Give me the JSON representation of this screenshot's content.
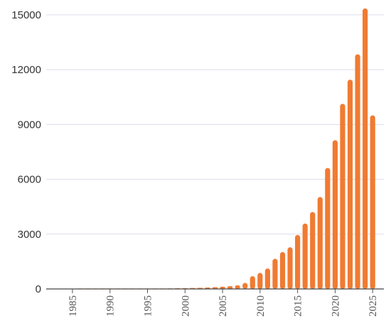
{
  "chart_data": {
    "type": "bar",
    "title": "",
    "xlabel": "",
    "ylabel": "",
    "x": [
      1986,
      1987,
      1988,
      1989,
      1990,
      1991,
      1992,
      1993,
      1994,
      1995,
      1996,
      1997,
      1998,
      1999,
      2000,
      2001,
      2002,
      2003,
      2004,
      2005,
      2006,
      2007,
      2008,
      2009,
      2010,
      2011,
      2012,
      2013,
      2014,
      2015,
      2016,
      2017,
      2018,
      2019,
      2020,
      2021,
      2022,
      2023,
      2024,
      2025
    ],
    "values": [
      2,
      2,
      3,
      3,
      4,
      4,
      5,
      6,
      8,
      12,
      20,
      25,
      30,
      40,
      45,
      55,
      65,
      80,
      95,
      120,
      150,
      200,
      330,
      700,
      880,
      1120,
      1650,
      2020,
      2280,
      2950,
      3580,
      4210,
      5030,
      6620,
      8140,
      10130,
      11450,
      12840,
      15350,
      9500
    ],
    "ylim": [
      0,
      15500
    ],
    "yticks": [
      0,
      3000,
      6000,
      9000,
      12000,
      15000
    ],
    "xticks": [
      1985,
      1990,
      1995,
      2000,
      2005,
      2010,
      2015,
      2020,
      2025
    ],
    "xlim": [
      1981.5,
      2026.5
    ],
    "grid": true,
    "legend": "none",
    "bar_color": "#f07b32"
  }
}
